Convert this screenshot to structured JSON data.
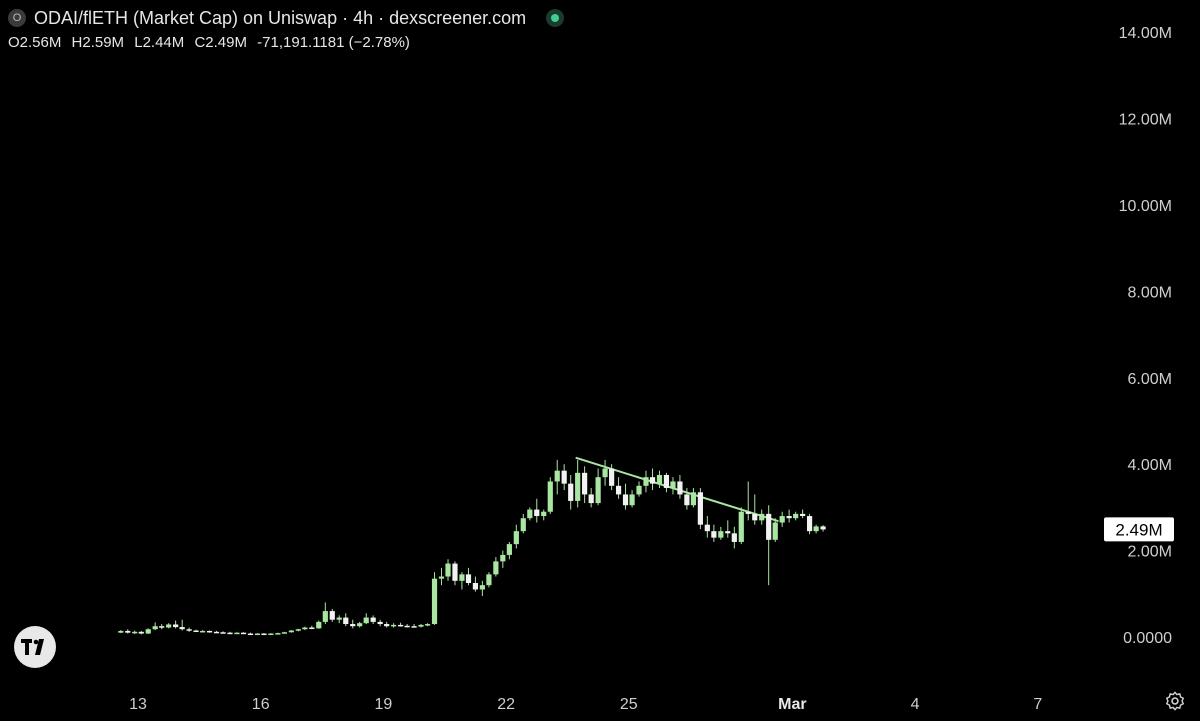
{
  "header": {
    "symbol_badge": "O",
    "title": "ODAI/flETH (Market Cap) on Uniswap · 4h · dexscreener.com",
    "ohlc": {
      "open": "O2.56M",
      "high": "H2.59M",
      "low": "L2.44M",
      "close": "C2.49M",
      "change": "-71,191.1181 (−2.78%)"
    }
  },
  "colors": {
    "background": "#000000",
    "candle": "#a8e6a1",
    "trendline": "#a8e6a1",
    "text": "#d8d8d8"
  },
  "icons": {
    "logo": "tradingview-logo-icon",
    "settings": "settings-gear-icon"
  },
  "chart_data": {
    "type": "candlestick",
    "y_axis": {
      "min": 0,
      "max": 14000000,
      "ticks": [
        0,
        2000000,
        4000000,
        6000000,
        8000000,
        10000000,
        12000000,
        14000000
      ],
      "tick_labels": [
        "0.0000",
        "2.00M",
        "4.00M",
        "6.00M",
        "8.00M",
        "10.00M",
        "12.00M",
        "14.00M"
      ]
    },
    "x_axis": {
      "tick_labels": [
        "13",
        "16",
        "19",
        "22",
        "25",
        "Mar",
        "4",
        "7"
      ],
      "tick_days": [
        13,
        16,
        19,
        22,
        25,
        29,
        32,
        35
      ]
    },
    "last_price": 2490000,
    "last_price_label": "2.49M",
    "trendline": {
      "from": {
        "day": 23.7,
        "value": 4150000
      },
      "to": {
        "day": 28.66,
        "value": 2680000
      }
    },
    "series": [
      {
        "values": [
          [
            12.58,
            0.1,
            0.16,
            0.09,
            0.14
          ],
          [
            12.75,
            0.14,
            0.18,
            0.08,
            0.1
          ],
          [
            12.92,
            0.1,
            0.15,
            0.07,
            0.12
          ],
          [
            13.08,
            0.12,
            0.14,
            0.06,
            0.08
          ],
          [
            13.25,
            0.08,
            0.2,
            0.07,
            0.18
          ],
          [
            13.42,
            0.18,
            0.34,
            0.16,
            0.25
          ],
          [
            13.58,
            0.25,
            0.3,
            0.18,
            0.22
          ],
          [
            13.75,
            0.22,
            0.32,
            0.2,
            0.29
          ],
          [
            13.92,
            0.29,
            0.38,
            0.2,
            0.23
          ],
          [
            14.08,
            0.23,
            0.4,
            0.15,
            0.18
          ],
          [
            14.25,
            0.18,
            0.22,
            0.12,
            0.15
          ],
          [
            14.42,
            0.15,
            0.17,
            0.12,
            0.13
          ],
          [
            14.58,
            0.13,
            0.16,
            0.11,
            0.14
          ],
          [
            14.75,
            0.14,
            0.15,
            0.1,
            0.12
          ],
          [
            14.92,
            0.12,
            0.14,
            0.1,
            0.11
          ],
          [
            15.08,
            0.11,
            0.13,
            0.09,
            0.1
          ],
          [
            15.25,
            0.1,
            0.12,
            0.08,
            0.09
          ],
          [
            15.42,
            0.09,
            0.11,
            0.08,
            0.1
          ],
          [
            15.58,
            0.1,
            0.11,
            0.07,
            0.08
          ],
          [
            15.75,
            0.08,
            0.1,
            0.06,
            0.07
          ],
          [
            15.92,
            0.07,
            0.09,
            0.06,
            0.08
          ],
          [
            16.08,
            0.08,
            0.09,
            0.06,
            0.07
          ],
          [
            16.25,
            0.07,
            0.09,
            0.06,
            0.08
          ],
          [
            16.42,
            0.08,
            0.1,
            0.07,
            0.09
          ],
          [
            16.58,
            0.09,
            0.12,
            0.08,
            0.11
          ],
          [
            16.75,
            0.11,
            0.16,
            0.1,
            0.15
          ],
          [
            16.92,
            0.15,
            0.19,
            0.13,
            0.18
          ],
          [
            17.08,
            0.18,
            0.24,
            0.16,
            0.22
          ],
          [
            17.25,
            0.22,
            0.26,
            0.18,
            0.2
          ],
          [
            17.42,
            0.2,
            0.38,
            0.19,
            0.35
          ],
          [
            17.58,
            0.35,
            0.8,
            0.3,
            0.6
          ],
          [
            17.75,
            0.6,
            0.65,
            0.35,
            0.4
          ],
          [
            17.92,
            0.4,
            0.5,
            0.32,
            0.45
          ],
          [
            18.08,
            0.45,
            0.55,
            0.25,
            0.3
          ],
          [
            18.25,
            0.3,
            0.4,
            0.2,
            0.25
          ],
          [
            18.42,
            0.25,
            0.35,
            0.22,
            0.32
          ],
          [
            18.58,
            0.32,
            0.55,
            0.3,
            0.45
          ],
          [
            18.75,
            0.45,
            0.5,
            0.3,
            0.35
          ],
          [
            18.92,
            0.35,
            0.4,
            0.25,
            0.3
          ],
          [
            19.08,
            0.3,
            0.35,
            0.22,
            0.25
          ],
          [
            19.25,
            0.25,
            0.32,
            0.22,
            0.28
          ],
          [
            19.42,
            0.28,
            0.33,
            0.24,
            0.26
          ],
          [
            19.58,
            0.26,
            0.3,
            0.22,
            0.25
          ],
          [
            19.75,
            0.25,
            0.3,
            0.22,
            0.24
          ],
          [
            19.92,
            0.24,
            0.3,
            0.22,
            0.28
          ],
          [
            20.08,
            0.28,
            0.32,
            0.25,
            0.3
          ],
          [
            20.25,
            0.3,
            1.5,
            0.28,
            1.35
          ],
          [
            20.42,
            1.35,
            1.6,
            1.2,
            1.4
          ],
          [
            20.58,
            1.4,
            1.8,
            1.3,
            1.7
          ],
          [
            20.75,
            1.7,
            1.75,
            1.2,
            1.3
          ],
          [
            20.92,
            1.3,
            1.5,
            1.1,
            1.45
          ],
          [
            21.08,
            1.45,
            1.6,
            1.2,
            1.25
          ],
          [
            21.25,
            1.25,
            1.4,
            1.05,
            1.1
          ],
          [
            21.42,
            1.1,
            1.3,
            0.95,
            1.2
          ],
          [
            21.58,
            1.2,
            1.5,
            1.15,
            1.45
          ],
          [
            21.75,
            1.45,
            1.85,
            1.4,
            1.75
          ],
          [
            21.92,
            1.75,
            2.0,
            1.6,
            1.9
          ],
          [
            22.08,
            1.9,
            2.2,
            1.8,
            2.15
          ],
          [
            22.25,
            2.15,
            2.6,
            2.05,
            2.45
          ],
          [
            22.42,
            2.45,
            2.85,
            2.4,
            2.75
          ],
          [
            22.58,
            2.75,
            3.0,
            2.7,
            2.95
          ],
          [
            22.75,
            2.95,
            3.2,
            2.65,
            2.8
          ],
          [
            22.92,
            2.8,
            2.95,
            2.7,
            2.9
          ],
          [
            23.08,
            2.9,
            3.7,
            2.85,
            3.6
          ],
          [
            23.25,
            3.6,
            4.1,
            3.3,
            3.85
          ],
          [
            23.42,
            3.85,
            4.0,
            3.4,
            3.55
          ],
          [
            23.58,
            3.55,
            3.75,
            2.95,
            3.15
          ],
          [
            23.75,
            3.15,
            4.1,
            3.0,
            3.8
          ],
          [
            23.92,
            3.8,
            3.95,
            3.1,
            3.3
          ],
          [
            24.08,
            3.3,
            3.45,
            3.0,
            3.1
          ],
          [
            24.25,
            3.1,
            3.9,
            3.05,
            3.7
          ],
          [
            24.42,
            3.7,
            4.1,
            3.5,
            3.9
          ],
          [
            24.58,
            3.9,
            4.0,
            3.4,
            3.5
          ],
          [
            24.75,
            3.5,
            3.7,
            3.2,
            3.3
          ],
          [
            24.92,
            3.3,
            3.55,
            2.95,
            3.05
          ],
          [
            25.08,
            3.05,
            3.4,
            3.0,
            3.3
          ],
          [
            25.25,
            3.3,
            3.6,
            3.25,
            3.5
          ],
          [
            25.42,
            3.5,
            3.85,
            3.35,
            3.7
          ],
          [
            25.58,
            3.7,
            3.9,
            3.4,
            3.55
          ],
          [
            25.75,
            3.55,
            3.85,
            3.45,
            3.75
          ],
          [
            25.92,
            3.75,
            3.8,
            3.35,
            3.45
          ],
          [
            26.08,
            3.45,
            3.7,
            3.3,
            3.6
          ],
          [
            26.25,
            3.6,
            3.75,
            3.2,
            3.3
          ],
          [
            26.42,
            3.3,
            3.45,
            2.95,
            3.05
          ],
          [
            26.58,
            3.05,
            3.45,
            3.0,
            3.35
          ],
          [
            26.75,
            3.35,
            3.45,
            2.5,
            2.6
          ],
          [
            26.92,
            2.6,
            2.8,
            2.3,
            2.45
          ],
          [
            27.08,
            2.45,
            2.6,
            2.2,
            2.3
          ],
          [
            27.25,
            2.3,
            2.55,
            2.25,
            2.45
          ],
          [
            27.42,
            2.45,
            2.7,
            2.3,
            2.4
          ],
          [
            27.58,
            2.4,
            2.55,
            2.05,
            2.2
          ],
          [
            27.75,
            2.2,
            3.0,
            2.15,
            2.9
          ],
          [
            27.92,
            2.9,
            3.6,
            2.7,
            2.85
          ],
          [
            28.08,
            2.85,
            3.3,
            2.6,
            2.7
          ],
          [
            28.25,
            2.7,
            2.95,
            2.6,
            2.85
          ],
          [
            28.42,
            2.85,
            3.05,
            1.2,
            2.25
          ],
          [
            28.58,
            2.25,
            2.75,
            2.2,
            2.65
          ],
          [
            28.75,
            2.65,
            2.9,
            2.55,
            2.8
          ],
          [
            28.92,
            2.8,
            2.95,
            2.65,
            2.75
          ],
          [
            29.08,
            2.75,
            2.9,
            2.7,
            2.85
          ],
          [
            29.25,
            2.85,
            2.95,
            2.75,
            2.8
          ],
          [
            29.42,
            2.8,
            2.85,
            2.38,
            2.45
          ],
          [
            29.58,
            2.45,
            2.6,
            2.4,
            2.56
          ],
          [
            29.75,
            2.56,
            2.59,
            2.44,
            2.49
          ]
        ]
      }
    ]
  }
}
